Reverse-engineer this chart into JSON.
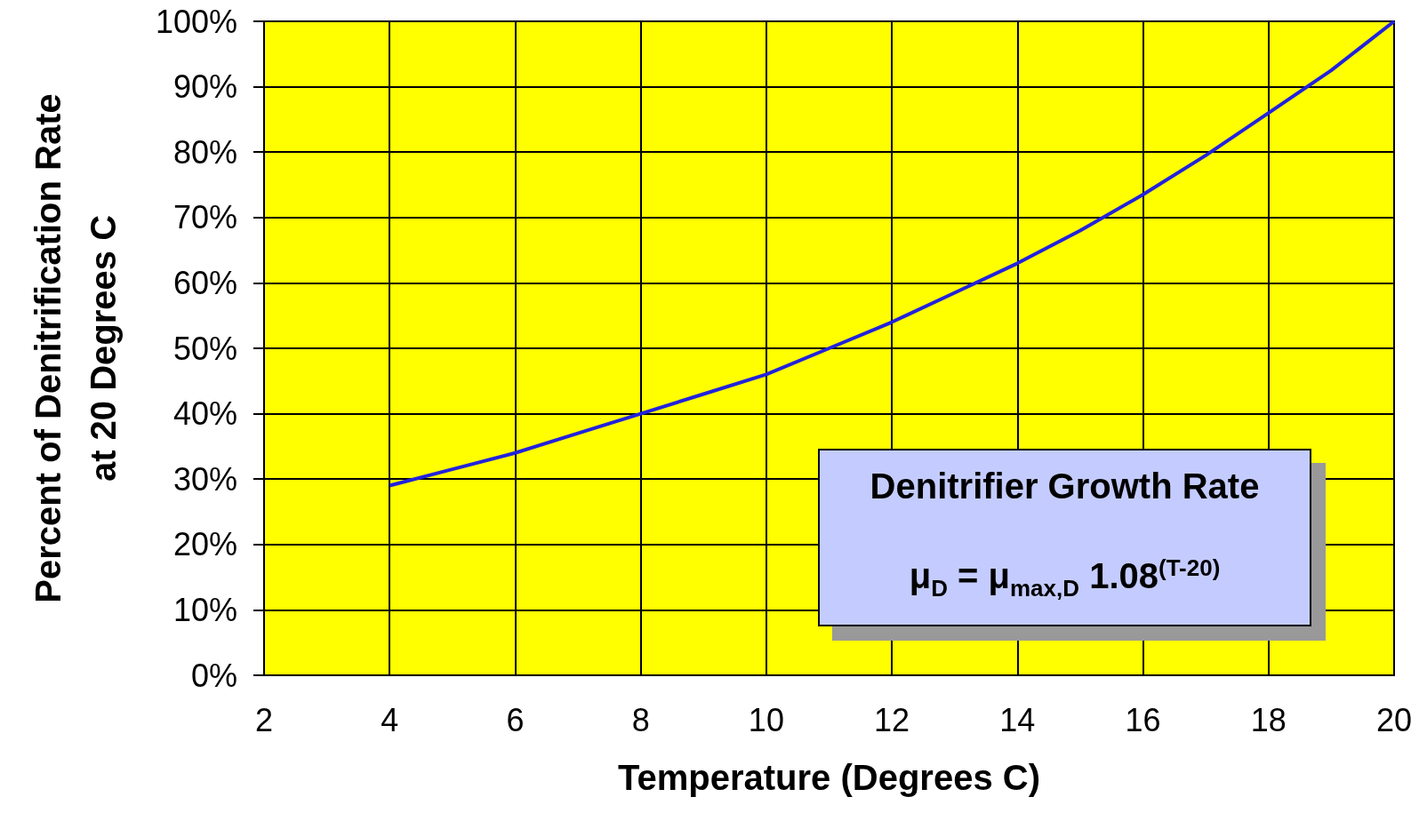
{
  "chart_data": {
    "type": "line",
    "xlabel": "Temperature (Degrees C)",
    "ylabel": "Percent of Denitrification Rate\nat 20 Degrees C",
    "x": [
      4,
      5,
      6,
      7,
      8,
      9,
      10,
      11,
      12,
      13,
      14,
      15,
      16,
      17,
      18,
      19,
      20
    ],
    "series": [
      {
        "color": "#2222dd",
        "values": [
          29,
          31.5,
          34,
          37,
          40,
          43,
          46,
          50,
          54,
          58.5,
          63,
          68,
          73.5,
          79.5,
          86,
          92.5,
          100
        ]
      }
    ],
    "xlim": [
      2,
      20
    ],
    "xticks": [
      2,
      4,
      6,
      8,
      10,
      12,
      14,
      16,
      18,
      20
    ],
    "ylim": [
      0,
      100
    ],
    "yticks": [
      {
        "value": 0,
        "label": "0%"
      },
      {
        "value": 10,
        "label": "10%"
      },
      {
        "value": 20,
        "label": "20%"
      },
      {
        "value": 30,
        "label": "30%"
      },
      {
        "value": 40,
        "label": "40%"
      },
      {
        "value": 50,
        "label": "50%"
      },
      {
        "value": 60,
        "label": "60%"
      },
      {
        "value": 70,
        "label": "70%"
      },
      {
        "value": 80,
        "label": "80%"
      },
      {
        "value": 90,
        "label": "90%"
      },
      {
        "value": 100,
        "label": "100%"
      }
    ],
    "grid": true,
    "marker": "none",
    "line_style": "solid",
    "annotations": [
      "Denitrifier Growth Rate",
      "μ$_{D}$ = μ$_{max,D}$ 1.08$^{(T-20)}$"
    ]
  }
}
